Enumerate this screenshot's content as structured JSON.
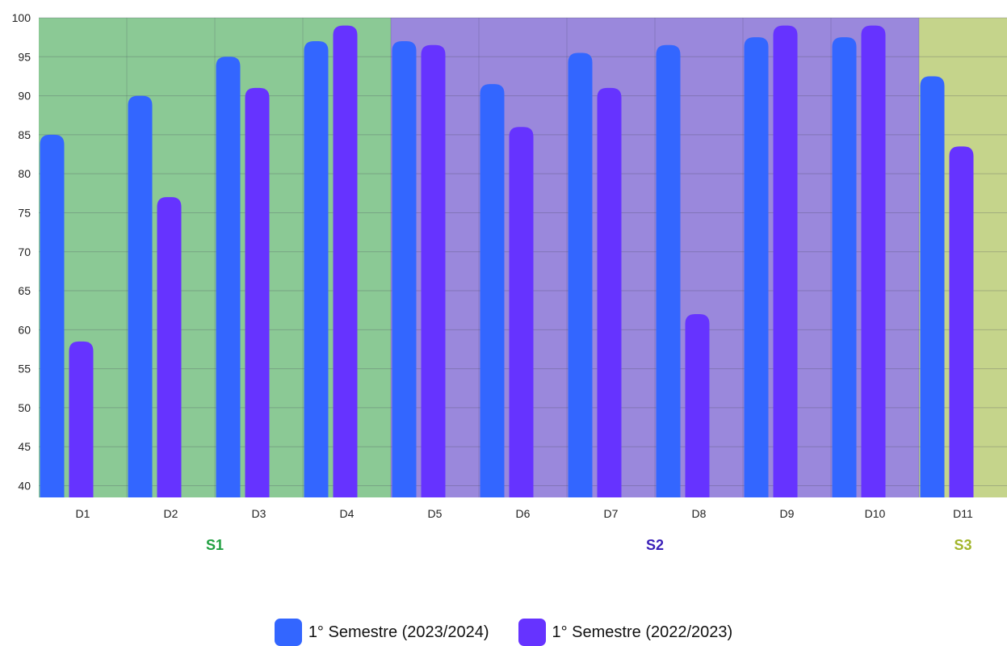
{
  "chart_data": {
    "type": "bar",
    "categories": [
      "D1",
      "D2",
      "D3",
      "D4",
      "D5",
      "D6",
      "D7",
      "D8",
      "D9",
      "D10",
      "D11"
    ],
    "series": [
      {
        "name": "1° Semestre (2023/2024)",
        "color": "#3366ff",
        "values": [
          85,
          90,
          95,
          97,
          97,
          91.5,
          95.5,
          96.5,
          97.5,
          97.5,
          92.5
        ]
      },
      {
        "name": "1° Semestre (2022/2023)",
        "color": "#6633ff",
        "values": [
          58.5,
          77,
          91,
          99,
          96.5,
          86,
          91,
          62,
          99,
          99,
          83.5
        ]
      }
    ],
    "ylim": [
      38.5,
      100
    ],
    "yticks": [
      40,
      45,
      50,
      55,
      60,
      65,
      70,
      75,
      80,
      85,
      90,
      95,
      100
    ],
    "grid": true,
    "legend_position": "bottom",
    "groups": [
      {
        "label": "S1",
        "categories": [
          "D1",
          "D2",
          "D3",
          "D4"
        ],
        "background": "#8bc995",
        "label_color": "#22a042"
      },
      {
        "label": "S2",
        "categories": [
          "D5",
          "D6",
          "D7",
          "D8",
          "D9",
          "D10"
        ],
        "background": "#9a88dc",
        "label_color": "#3a1fb8"
      },
      {
        "label": "S3",
        "categories": [
          "D11"
        ],
        "background": "#c5d48b",
        "label_color": "#a2b52a"
      }
    ],
    "title": "",
    "xlabel": "",
    "ylabel": ""
  }
}
